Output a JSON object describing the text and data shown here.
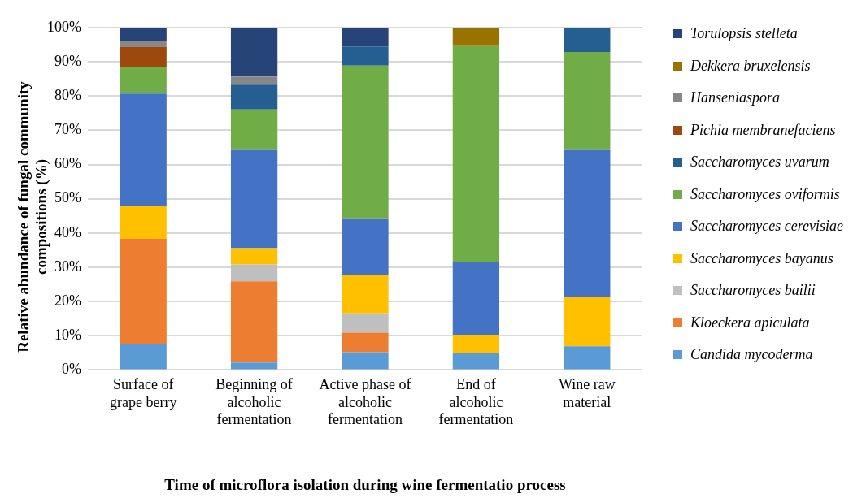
{
  "chart_data": {
    "type": "bar",
    "stacked": true,
    "xlabel": "Time of microflora isolation during wine fermentatio process",
    "ylabel": "Relative abundance of  fungal community compositions (%)",
    "categories": [
      "Surface of grape berry",
      "Beginning of alcoholic fermentation",
      "Active phase of alcoholic fermentation",
      "End of alcoholic fermentation",
      "Wine raw material"
    ],
    "ylim": [
      0,
      100
    ],
    "yticks": [
      {
        "value": 0,
        "label": "0%"
      },
      {
        "value": 10,
        "label": "10%"
      },
      {
        "value": 20,
        "label": "20%"
      },
      {
        "value": 30,
        "label": "30%"
      },
      {
        "value": 40,
        "label": "40%"
      },
      {
        "value": 50,
        "label": "50%"
      },
      {
        "value": 60,
        "label": "60%"
      },
      {
        "value": 70,
        "label": "70%"
      },
      {
        "value": 80,
        "label": "80%"
      },
      {
        "value": 90,
        "label": "90%"
      },
      {
        "value": 100,
        "label": "100%"
      }
    ],
    "grid": "y",
    "legend": "right",
    "series": [
      {
        "name": "Candida mycoderma",
        "color": "#5b9bd5",
        "values": [
          7.5,
          2.2,
          5.2,
          5.0,
          6.9
        ]
      },
      {
        "name": "Kloeckera apiculata",
        "color": "#ed7d31",
        "values": [
          30.8,
          23.7,
          5.7,
          0,
          0
        ]
      },
      {
        "name": "Saccharomyces bailii",
        "color": "#bfbfbf",
        "values": [
          0,
          4.9,
          5.6,
          0,
          0
        ]
      },
      {
        "name": "Saccharomyces bayanus",
        "color": "#ffc000",
        "values": [
          9.7,
          4.8,
          11.1,
          5.3,
          14.3
        ]
      },
      {
        "name": "Saccharomyces cerevisiae",
        "color": "#4472c4",
        "values": [
          32.7,
          28.6,
          16.7,
          21.1,
          43.0
        ]
      },
      {
        "name": "Saccharomyces oviformis",
        "color": "#70ad47",
        "values": [
          7.7,
          11.9,
          44.6,
          63.2,
          28.7
        ]
      },
      {
        "name": "Saccharomyces uvarum",
        "color": "#255e91",
        "values": [
          0,
          7.2,
          5.6,
          0,
          7.1
        ]
      },
      {
        "name": "Pichia membranefaciens",
        "color": "#9e480e",
        "values": [
          5.9,
          0,
          0,
          0,
          0
        ]
      },
      {
        "name": "Hanseniaspora",
        "color": "#878787",
        "values": [
          1.9,
          2.4,
          0,
          0,
          0
        ]
      },
      {
        "name": "Dekkera bruxelensis",
        "color": "#997300",
        "values": [
          0,
          0,
          0,
          5.4,
          0
        ]
      },
      {
        "name": "Torulopsis stelleta",
        "color": "#264478",
        "values": [
          3.8,
          14.3,
          5.5,
          0,
          0
        ]
      }
    ]
  }
}
